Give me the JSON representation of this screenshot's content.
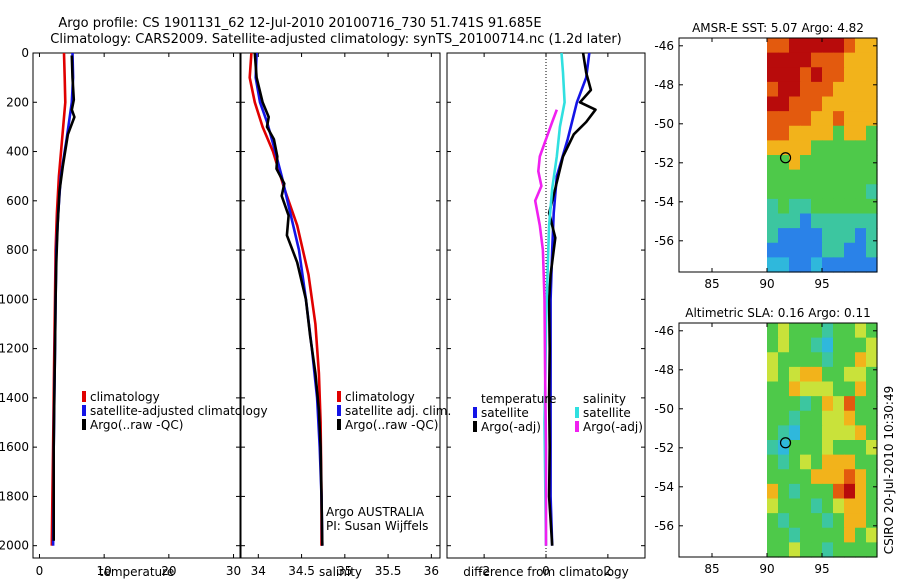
{
  "title": {
    "line1": "Argo profile: CS 1901131_62 12-Jul-2010 20100716_730 51.741S 91.685E",
    "line2": "Climatology: CARS2009. Satellite-adjusted climatology: synTS_20100714.nc (1.2d later)"
  },
  "colors": {
    "red": "#e00000",
    "blue": "#1414e6",
    "black": "#000000",
    "cyan": "#30e0e0",
    "magenta": "#f020f0"
  },
  "chart_data": [
    {
      "type": "line",
      "id": "temperature",
      "xlabel": "temperature",
      "ylabel": "",
      "xlim": [
        -1,
        31
      ],
      "ylim": [
        2050,
        0
      ],
      "xticks": [
        0,
        10,
        20,
        30
      ],
      "yticks": [
        0,
        200,
        400,
        600,
        800,
        1000,
        1200,
        1400,
        1600,
        1800,
        2000
      ],
      "legend": [
        "climatology",
        "satellite-adjusted climatology",
        "Argo(..raw -QC)"
      ],
      "series": [
        {
          "name": "climatology",
          "color": "red",
          "points": [
            [
              3.8,
              0
            ],
            [
              3.9,
              100
            ],
            [
              4.0,
              200
            ],
            [
              3.5,
              350
            ],
            [
              3.0,
              500
            ],
            [
              2.7,
              650
            ],
            [
              2.5,
              800
            ],
            [
              2.4,
              1000
            ],
            [
              2.3,
              1200
            ],
            [
              2.2,
              1400
            ],
            [
              2.1,
              1600
            ],
            [
              2.0,
              1800
            ],
            [
              1.9,
              2000
            ]
          ]
        },
        {
          "name": "satellite-adjusted climatology",
          "color": "blue",
          "points": [
            [
              5.1,
              0
            ],
            [
              5.2,
              100
            ],
            [
              5.0,
              200
            ],
            [
              4.2,
              350
            ],
            [
              3.3,
              500
            ],
            [
              2.9,
              650
            ],
            [
              2.6,
              800
            ],
            [
              2.5,
              1000
            ],
            [
              2.4,
              1200
            ],
            [
              2.3,
              1400
            ],
            [
              2.2,
              1600
            ],
            [
              2.2,
              1800
            ],
            [
              2.1,
              2000
            ]
          ]
        },
        {
          "name": "Argo(..raw -QC)",
          "color": "black",
          "points": [
            [
              5.0,
              10
            ],
            [
              5.1,
              100
            ],
            [
              5.3,
              190
            ],
            [
              5.0,
              230
            ],
            [
              5.4,
              260
            ],
            [
              4.4,
              330
            ],
            [
              3.6,
              460
            ],
            [
              3.1,
              560
            ],
            [
              2.8,
              700
            ],
            [
              2.6,
              850
            ],
            [
              2.5,
              1000
            ],
            [
              2.4,
              1200
            ],
            [
              2.3,
              1400
            ],
            [
              2.2,
              1600
            ],
            [
              2.2,
              1800
            ],
            [
              2.2,
              1980
            ]
          ]
        }
      ]
    },
    {
      "type": "line",
      "id": "salinity",
      "xlabel": "salinity",
      "xlim": [
        33.8,
        36.1
      ],
      "ylim": [
        2050,
        0
      ],
      "xticks": [
        34,
        34.5,
        35,
        35.5,
        36
      ],
      "yticks": [
        0,
        200,
        400,
        600,
        800,
        1000,
        1200,
        1400,
        1600,
        1800,
        2000
      ],
      "legend": [
        "climatology",
        "satellite adj. clim.",
        "Argo(..raw -QC)"
      ],
      "annotation": [
        "Argo AUSTRALIA",
        "PI: Susan Wijffels"
      ],
      "series": [
        {
          "name": "climatology",
          "color": "red",
          "points": [
            [
              33.92,
              0
            ],
            [
              33.9,
              100
            ],
            [
              33.96,
              200
            ],
            [
              34.05,
              300
            ],
            [
              34.17,
              400
            ],
            [
              34.3,
              550
            ],
            [
              34.45,
              700
            ],
            [
              34.58,
              900
            ],
            [
              34.66,
              1100
            ],
            [
              34.7,
              1300
            ],
            [
              34.72,
              1500
            ],
            [
              34.73,
              1800
            ],
            [
              34.73,
              2000
            ]
          ]
        },
        {
          "name": "satellite adj. clim.",
          "color": "blue",
          "points": [
            [
              33.98,
              0
            ],
            [
              33.97,
              100
            ],
            [
              34.02,
              200
            ],
            [
              34.1,
              280
            ],
            [
              34.18,
              380
            ],
            [
              34.27,
              500
            ],
            [
              34.37,
              650
            ],
            [
              34.47,
              800
            ],
            [
              34.55,
              1000
            ],
            [
              34.62,
              1200
            ],
            [
              34.68,
              1400
            ],
            [
              34.71,
              1600
            ],
            [
              34.73,
              1800
            ],
            [
              34.74,
              2000
            ]
          ]
        },
        {
          "name": "Argo(..raw -QC)",
          "color": "black",
          "points": [
            [
              33.96,
              0
            ],
            [
              33.98,
              100
            ],
            [
              34.05,
              200
            ],
            [
              34.12,
              260
            ],
            [
              34.1,
              300
            ],
            [
              34.18,
              350
            ],
            [
              34.22,
              420
            ],
            [
              34.21,
              470
            ],
            [
              34.3,
              530
            ],
            [
              34.27,
              580
            ],
            [
              34.35,
              660
            ],
            [
              34.33,
              740
            ],
            [
              34.45,
              850
            ],
            [
              34.55,
              1000
            ],
            [
              34.6,
              1150
            ],
            [
              34.66,
              1300
            ],
            [
              34.7,
              1450
            ],
            [
              34.72,
              1600
            ],
            [
              34.73,
              1800
            ],
            [
              34.74,
              2000
            ]
          ]
        }
      ]
    },
    {
      "type": "line",
      "id": "difference",
      "xlabel": "difference from climatology",
      "xlim": [
        -3.2,
        3.2
      ],
      "ylim": [
        2050,
        0
      ],
      "xticks": [
        -2,
        0,
        2
      ],
      "yticks": [
        0,
        200,
        400,
        600,
        800,
        1000,
        1200,
        1400,
        1600,
        1800,
        2000
      ],
      "legend_titles": [
        "temperature",
        "salinity"
      ],
      "legend": [
        "satellite",
        "Argo(-adj)",
        "satellite",
        "Argo(-adj)"
      ],
      "series": [
        {
          "name": "temperature satellite",
          "color": "blue",
          "points": [
            [
              1.4,
              0
            ],
            [
              1.3,
              100
            ],
            [
              1.0,
              200
            ],
            [
              0.7,
              350
            ],
            [
              0.35,
              500
            ],
            [
              0.25,
              650
            ],
            [
              0.2,
              800
            ],
            [
              0.15,
              1000
            ],
            [
              0.15,
              1200
            ],
            [
              0.15,
              1400
            ],
            [
              0.15,
              1600
            ],
            [
              0.15,
              1800
            ],
            [
              0.2,
              2000
            ]
          ]
        },
        {
          "name": "temperature Argo(-adj)",
          "color": "black",
          "points": [
            [
              1.2,
              0
            ],
            [
              1.3,
              80
            ],
            [
              1.45,
              150
            ],
            [
              1.1,
              200
            ],
            [
              1.6,
              230
            ],
            [
              1.3,
              280
            ],
            [
              0.9,
              330
            ],
            [
              0.55,
              420
            ],
            [
              0.3,
              550
            ],
            [
              0.1,
              650
            ],
            [
              0.3,
              750
            ],
            [
              0.15,
              900
            ],
            [
              0.1,
              1000
            ],
            [
              0.12,
              1200
            ],
            [
              0.1,
              1400
            ],
            [
              0.12,
              1600
            ],
            [
              0.1,
              1800
            ],
            [
              0.2,
              2000
            ]
          ]
        },
        {
          "name": "salinity satellite",
          "color": "cyan",
          "points": [
            [
              0.5,
              0
            ],
            [
              0.55,
              80
            ],
            [
              0.6,
              200
            ],
            [
              0.45,
              300
            ],
            [
              0.35,
              420
            ],
            [
              0.2,
              550
            ],
            [
              0.1,
              700
            ],
            [
              0.05,
              900
            ],
            [
              0.0,
              1100
            ],
            [
              -0.02,
              1300
            ],
            [
              -0.05,
              1500
            ],
            [
              -0.03,
              1700
            ],
            [
              0.0,
              2000
            ]
          ]
        },
        {
          "name": "salinity Argo(-adj)",
          "color": "magenta",
          "points": [
            [
              0.35,
              230
            ],
            [
              0.2,
              280
            ],
            [
              0.0,
              350
            ],
            [
              -0.2,
              420
            ],
            [
              -0.25,
              480
            ],
            [
              -0.15,
              540
            ],
            [
              -0.35,
              600
            ],
            [
              -0.2,
              700
            ],
            [
              -0.1,
              800
            ],
            [
              -0.05,
              1000
            ],
            [
              -0.03,
              1300
            ],
            [
              0.0,
              1600
            ],
            [
              0.0,
              2000
            ]
          ]
        }
      ]
    },
    {
      "type": "heatmap",
      "id": "sst_map",
      "title": "AMSR-E SST: 5.07  Argo: 4.82",
      "xlim": [
        82,
        100
      ],
      "ylim": [
        -57.6,
        -45.6
      ],
      "xticks": [
        85,
        90,
        95
      ],
      "yticks": [
        -46,
        -48,
        -50,
        -52,
        -54,
        -56
      ],
      "data_xlim": [
        90,
        100
      ],
      "marker": [
        91.685,
        -51.741
      ],
      "rows": [
        "oorrrrroyy",
        "rrrroooyyy",
        "rrrorooyyy",
        "orroooyyyy",
        "rroooyyyyy",
        "ooooyyoyyy",
        "ooyyyygyyg",
        "yyyygggggg",
        "ggyggggggg",
        "gggggggggg",
        "gggggggggt",
        "tgttgggggg",
        "tttbtttttt",
        "tbbbbtttbt",
        "bbbbbttbbt",
        "ccbbcbbbbb"
      ]
    },
    {
      "type": "heatmap",
      "id": "sla_map",
      "title": "Altimetric SLA: 0.16  Argo: 0.11",
      "xlim": [
        82,
        100
      ],
      "ylim": [
        -57.6,
        -45.6
      ],
      "xticks": [
        85,
        90,
        95
      ],
      "yticks": [
        -46,
        -48,
        -50,
        -52,
        -54,
        -56
      ],
      "data_xlim": [
        90,
        100
      ],
      "marker": [
        91.685,
        -51.741
      ],
      "rows": [
        "glgggtgglg",
        "glggtcgggl",
        "lggggtggyl",
        "lglyyggllg",
        "ggylllggyg",
        "gggtgylogg",
        "ggtggllygg",
        "gtcgglllyg",
        "tcggglgggl",
        "gtglgyyygg",
        "ggggyyyoyg",
        "ygtgggoryg",
        "lgggtglyyg",
        "gtgggtgyyg",
        "ggtggggygl",
        "gglggtgggg"
      ]
    }
  ],
  "palette": {
    "r": "#b80b0b",
    "o": "#e35a0e",
    "y": "#f2b31b",
    "l": "#c9e23a",
    "g": "#4ec94a",
    "t": "#3cc6a0",
    "c": "#2fb8dc",
    "b": "#2a82e8"
  },
  "side_label": "CSIRO 20-Jul-2010 10:30:49"
}
